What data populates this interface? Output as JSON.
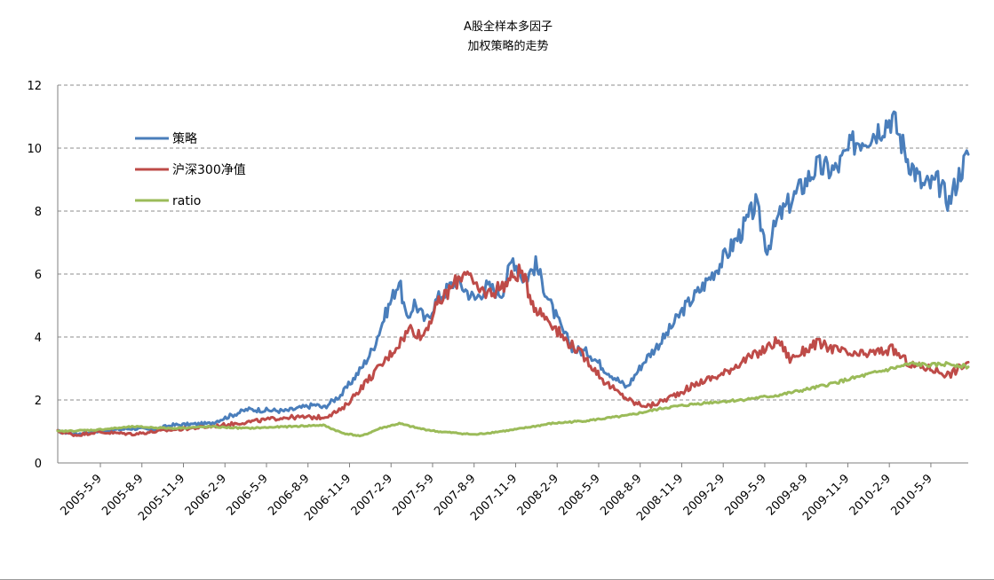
{
  "chart_data": {
    "type": "line",
    "title_lines": [
      "A股全样本多因子",
      "加权策略的走势"
    ],
    "xlabel": "",
    "ylabel": "",
    "ylim": [
      0,
      12
    ],
    "yticks": [
      0,
      2,
      4,
      6,
      8,
      10,
      12
    ],
    "grid": true,
    "legend_position": "top-left",
    "x_ticks": [
      "2005-5-9",
      "2005-8-9",
      "2005-11-9",
      "2006-2-9",
      "2006-5-9",
      "2006-8-9",
      "2006-11-9",
      "2007-2-9",
      "2007-5-9",
      "2007-8-9",
      "2007-11-9",
      "2008-2-9",
      "2008-5-9",
      "2008-8-9",
      "2008-11-9",
      "2009-2-9",
      "2009-5-9",
      "2009-8-9",
      "2009-11-9",
      "2010-2-9",
      "2010-5-9"
    ],
    "x_max": 21.0,
    "series": [
      {
        "name": "策略",
        "color": "#4a7ebb",
        "points": [
          [
            0,
            1.0
          ],
          [
            0.5,
            0.92
          ],
          [
            1,
            1.0
          ],
          [
            2,
            1.1
          ],
          [
            2.5,
            1.05
          ],
          [
            3,
            1.2
          ],
          [
            4,
            1.25
          ],
          [
            5,
            1.7
          ],
          [
            6,
            1.65
          ],
          [
            6.8,
            1.85
          ],
          [
            7,
            1.75
          ],
          [
            7.5,
            2.2
          ],
          [
            8,
            3.0
          ],
          [
            8.3,
            3.6
          ],
          [
            8.6,
            4.6
          ],
          [
            9,
            5.8
          ],
          [
            9.2,
            4.5
          ],
          [
            9.4,
            5.1
          ],
          [
            9.7,
            4.5
          ],
          [
            10,
            5.2
          ],
          [
            10.5,
            5.8
          ],
          [
            11,
            5.2
          ],
          [
            11.3,
            5.6
          ],
          [
            11.7,
            5.4
          ],
          [
            12,
            6.5
          ],
          [
            12.3,
            5.8
          ],
          [
            12.6,
            6.3
          ],
          [
            13,
            5.0
          ],
          [
            13.3,
            4.2
          ],
          [
            13.6,
            3.6
          ],
          [
            14,
            3.5
          ],
          [
            14.4,
            3.0
          ],
          [
            14.8,
            2.6
          ],
          [
            15,
            2.4
          ],
          [
            15.5,
            3.3
          ],
          [
            16,
            4.0
          ],
          [
            16.5,
            4.9
          ],
          [
            17,
            5.6
          ],
          [
            17.5,
            6.4
          ],
          [
            18,
            7.3
          ],
          [
            18.4,
            8.2
          ],
          [
            18.7,
            6.8
          ],
          [
            19,
            7.8
          ],
          [
            19.5,
            8.6
          ],
          [
            20,
            9.4
          ],
          [
            20.5,
            9.3
          ],
          [
            21,
            10.2
          ],
          [
            21.5,
            10.5
          ],
          [
            22,
            11.0
          ],
          [
            22.4,
            9.7
          ],
          [
            22.8,
            8.8
          ],
          [
            23.2,
            8.9
          ],
          [
            23.5,
            8.3
          ],
          [
            23.8,
            9.3
          ],
          [
            24,
            9.8
          ]
        ]
      },
      {
        "name": "沪深300净值",
        "color": "#be4b48",
        "points": [
          [
            0,
            1.0
          ],
          [
            0.5,
            0.88
          ],
          [
            1,
            0.98
          ],
          [
            2,
            0.92
          ],
          [
            3,
            1.05
          ],
          [
            4,
            1.15
          ],
          [
            5,
            1.3
          ],
          [
            6,
            1.45
          ],
          [
            7,
            1.45
          ],
          [
            7.5,
            1.7
          ],
          [
            8,
            2.4
          ],
          [
            8.3,
            2.8
          ],
          [
            8.6,
            3.2
          ],
          [
            9,
            3.8
          ],
          [
            9.3,
            4.3
          ],
          [
            9.6,
            4.0
          ],
          [
            10,
            5.0
          ],
          [
            10.4,
            5.6
          ],
          [
            10.8,
            6.2
          ],
          [
            11,
            5.5
          ],
          [
            11.4,
            5.4
          ],
          [
            11.8,
            5.7
          ],
          [
            12.2,
            6.1
          ],
          [
            12.6,
            4.9
          ],
          [
            13,
            4.5
          ],
          [
            13.3,
            4.0
          ],
          [
            13.6,
            3.7
          ],
          [
            14,
            3.2
          ],
          [
            14.4,
            2.6
          ],
          [
            14.8,
            2.2
          ],
          [
            15.2,
            1.9
          ],
          [
            15.6,
            1.8
          ],
          [
            16,
            2.0
          ],
          [
            16.5,
            2.3
          ],
          [
            17,
            2.6
          ],
          [
            17.5,
            2.8
          ],
          [
            18,
            3.2
          ],
          [
            18.5,
            3.5
          ],
          [
            19,
            3.9
          ],
          [
            19.3,
            3.3
          ],
          [
            19.6,
            3.5
          ],
          [
            20,
            3.8
          ],
          [
            20.5,
            3.6
          ],
          [
            21,
            3.4
          ],
          [
            21.5,
            3.5
          ],
          [
            22,
            3.6
          ],
          [
            22.5,
            3.1
          ],
          [
            23,
            3.0
          ],
          [
            23.5,
            2.8
          ],
          [
            24,
            3.2
          ]
        ]
      },
      {
        "name": "ratio",
        "color": "#9bbb59",
        "points": [
          [
            0,
            1.0
          ],
          [
            1,
            1.05
          ],
          [
            2,
            1.15
          ],
          [
            3,
            1.1
          ],
          [
            4,
            1.15
          ],
          [
            5,
            1.1
          ],
          [
            6,
            1.15
          ],
          [
            7,
            1.2
          ],
          [
            7.5,
            0.95
          ],
          [
            8,
            0.85
          ],
          [
            8.5,
            1.1
          ],
          [
            9,
            1.25
          ],
          [
            9.5,
            1.1
          ],
          [
            10,
            1.0
          ],
          [
            11,
            0.9
          ],
          [
            12,
            1.05
          ],
          [
            13,
            1.25
          ],
          [
            14,
            1.35
          ],
          [
            15,
            1.5
          ],
          [
            16,
            1.75
          ],
          [
            17,
            1.9
          ],
          [
            18,
            2.0
          ],
          [
            19,
            2.15
          ],
          [
            20,
            2.4
          ],
          [
            21,
            2.7
          ],
          [
            22,
            3.0
          ],
          [
            22.5,
            3.15
          ],
          [
            23,
            3.1
          ],
          [
            23.5,
            3.15
          ],
          [
            24,
            3.05
          ]
        ]
      }
    ]
  }
}
